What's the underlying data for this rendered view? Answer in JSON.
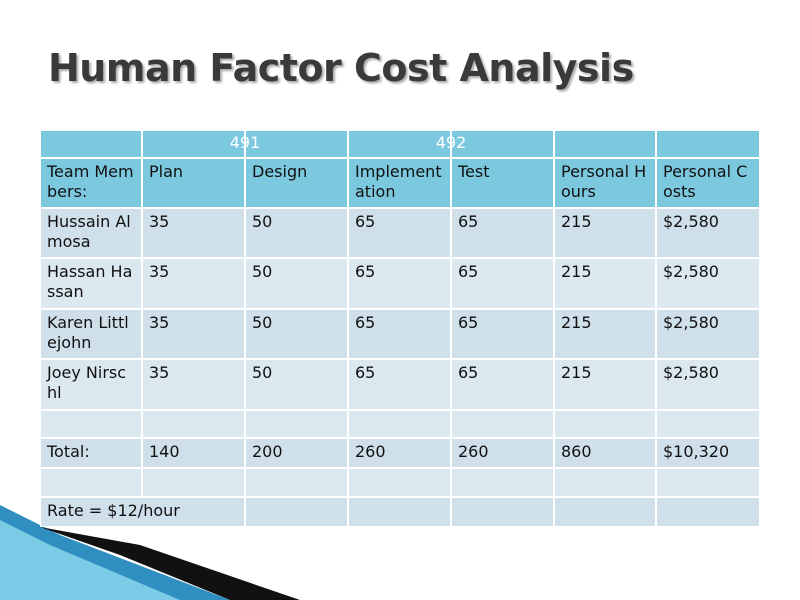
{
  "title": "Human Factor Cost Analysis",
  "table": {
    "groups": [
      "491",
      "492"
    ],
    "header": [
      "Team Members:",
      "Plan",
      "Design",
      "Implementation",
      "Test",
      "Personal Hours",
      "Personal Costs"
    ],
    "rows": [
      [
        "Hussain Almosa",
        "35",
        "50",
        "65",
        "65",
        "215",
        "$2,580"
      ],
      [
        "Hassan Hassan",
        "35",
        "50",
        "65",
        "65",
        "215",
        "$2,580"
      ],
      [
        "Karen Littlejohn",
        "35",
        "50",
        "65",
        "65",
        "215",
        "$2,580"
      ],
      [
        "Joey Nirschl",
        "35",
        "50",
        "65",
        "65",
        "215",
        "$2,580"
      ]
    ],
    "total": [
      "Total:",
      "140",
      "200",
      "260",
      "260",
      "860",
      "$10,320"
    ],
    "note": "Rate = $12/hour"
  }
}
